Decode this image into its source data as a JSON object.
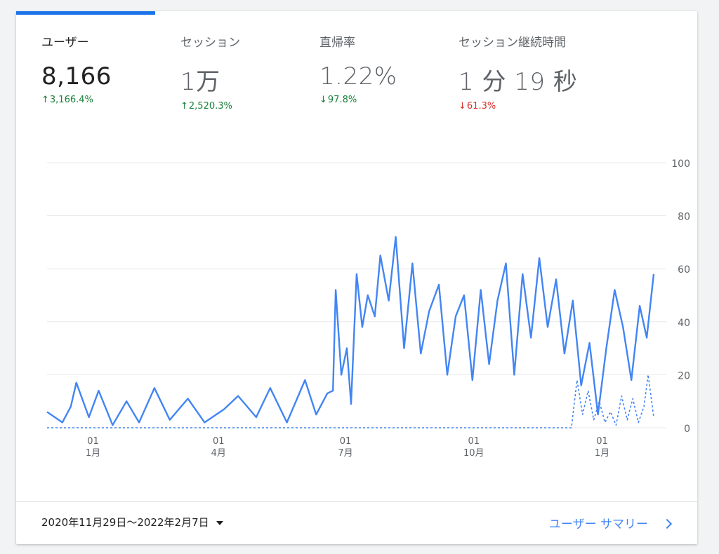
{
  "metrics": [
    {
      "label": "ユーザー",
      "value": "8,166",
      "change": "3,166.4%",
      "direction": "up",
      "tone": "good"
    },
    {
      "label": "セッション",
      "value": "1万",
      "change": "2,520.3%",
      "direction": "up",
      "tone": "good"
    },
    {
      "label": "直帰率",
      "value": "1.22%",
      "change": "97.8%",
      "direction": "down",
      "tone": "good"
    },
    {
      "label": "セッション継続時間",
      "value": "1 分 19 秒",
      "change": "61.3%",
      "direction": "down",
      "tone": "bad"
    }
  ],
  "colors": {
    "accent": "#1a73e8",
    "line": "#4285f4",
    "positive": "#188038",
    "negative": "#d93025"
  },
  "chart_data": {
    "type": "line",
    "x_start": "2020-11-29",
    "x_end": "2022-02-07",
    "ylim": [
      0,
      100
    ],
    "y_ticks": [
      0,
      20,
      40,
      60,
      80,
      100
    ],
    "y_tick_labels": [
      "0",
      "20",
      "40",
      "60",
      "80",
      "100"
    ],
    "x_ticks": [
      {
        "date": "2021-01-01",
        "day": "01",
        "month": "1月"
      },
      {
        "date": "2021-04-01",
        "day": "01",
        "month": "4月"
      },
      {
        "date": "2021-07-01",
        "day": "01",
        "month": "7月"
      },
      {
        "date": "2021-10-01",
        "day": "01",
        "month": "10月"
      },
      {
        "date": "2022-01-01",
        "day": "01",
        "month": "1月"
      }
    ],
    "grid": true,
    "series": [
      {
        "style": "solid",
        "x": [
          "2020-11-29",
          "2020-12-10",
          "2020-12-16",
          "2020-12-20",
          "2020-12-29",
          "2021-01-05",
          "2021-01-15",
          "2021-01-25",
          "2021-02-03",
          "2021-02-14",
          "2021-02-25",
          "2021-03-10",
          "2021-03-22",
          "2021-04-05",
          "2021-04-15",
          "2021-04-28",
          "2021-05-08",
          "2021-05-20",
          "2021-06-02",
          "2021-06-10",
          "2021-06-18",
          "2021-06-22",
          "2021-06-24",
          "2021-06-28",
          "2021-07-02",
          "2021-07-05",
          "2021-07-09",
          "2021-07-13",
          "2021-07-17",
          "2021-07-22",
          "2021-07-26",
          "2021-08-01",
          "2021-08-06",
          "2021-08-12",
          "2021-08-18",
          "2021-08-24",
          "2021-08-30",
          "2021-09-06",
          "2021-09-12",
          "2021-09-18",
          "2021-09-24",
          "2021-09-30",
          "2021-10-06",
          "2021-10-12",
          "2021-10-18",
          "2021-10-24",
          "2021-10-30",
          "2021-11-05",
          "2021-11-11",
          "2021-11-17",
          "2021-11-23",
          "2021-11-29",
          "2021-12-05",
          "2021-12-11",
          "2021-12-17",
          "2021-12-23",
          "2021-12-29",
          "2022-01-04",
          "2022-01-10",
          "2022-01-16",
          "2022-01-22",
          "2022-01-28",
          "2022-02-02",
          "2022-02-07"
        ],
        "y": [
          6,
          2,
          8,
          17,
          4,
          14,
          1,
          10,
          2,
          15,
          3,
          11,
          2,
          7,
          12,
          4,
          15,
          2,
          18,
          5,
          13,
          14,
          52,
          20,
          30,
          9,
          58,
          38,
          50,
          42,
          65,
          48,
          72,
          30,
          62,
          28,
          44,
          54,
          20,
          42,
          50,
          18,
          52,
          24,
          48,
          62,
          20,
          58,
          34,
          64,
          38,
          56,
          28,
          48,
          16,
          32,
          5,
          30,
          52,
          38,
          18,
          46,
          34,
          58
        ]
      },
      {
        "style": "dashed",
        "x": [
          "2020-11-29",
          "2021-12-10",
          "2021-12-14",
          "2021-12-18",
          "2021-12-22",
          "2021-12-26",
          "2021-12-30",
          "2022-01-03",
          "2022-01-07",
          "2022-01-11",
          "2022-01-15",
          "2022-01-19",
          "2022-01-23",
          "2022-01-27",
          "2022-01-31",
          "2022-02-03",
          "2022-02-07"
        ],
        "y": [
          0,
          0,
          18,
          5,
          14,
          3,
          10,
          2,
          6,
          1,
          12,
          3,
          11,
          2,
          8,
          20,
          4
        ]
      }
    ]
  },
  "footer": {
    "date_range": "2020年11月29日〜2022年2月7日",
    "link_label": "ユーザー サマリー"
  }
}
